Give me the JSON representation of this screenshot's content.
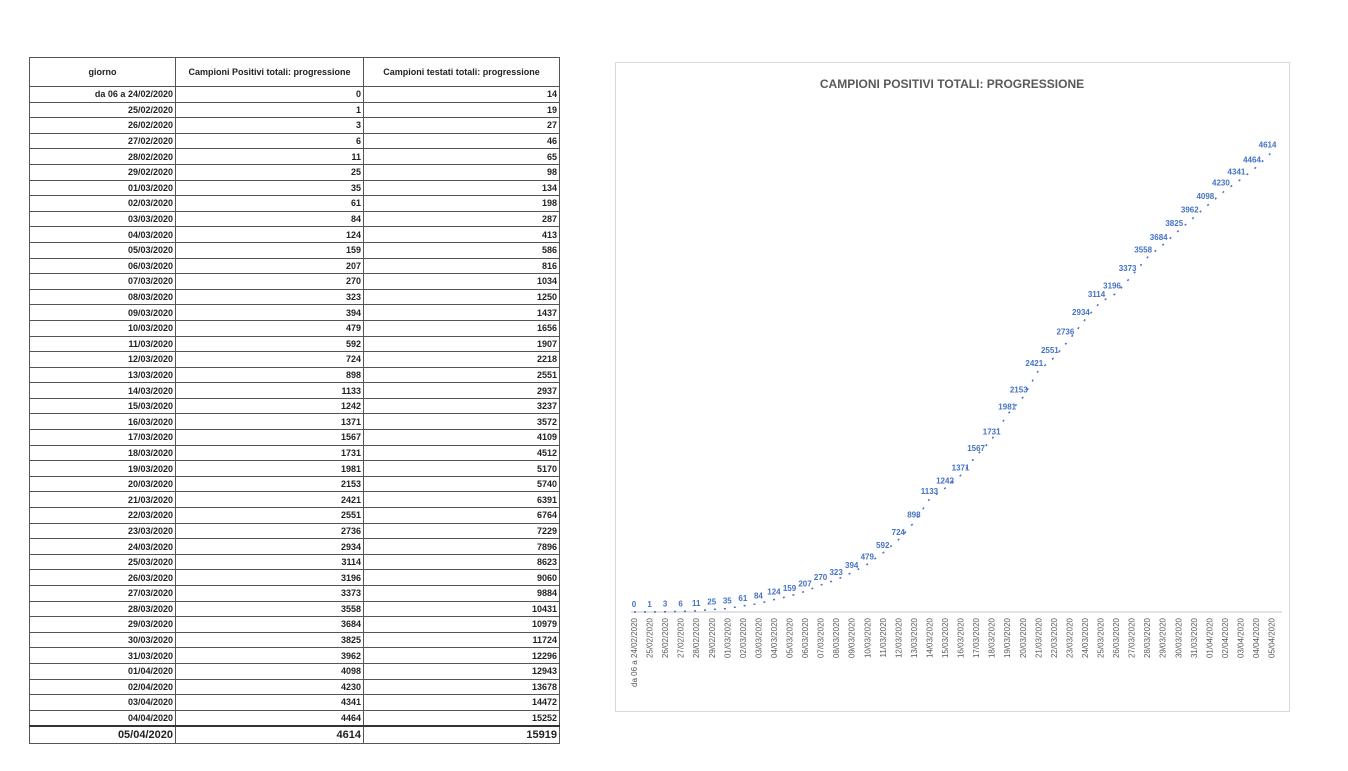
{
  "table": {
    "headers": [
      "giorno",
      "Campioni Positivi totali: progressione",
      "Campioni testati totali: progressione"
    ],
    "rows": [
      [
        "da 06 a 24/02/2020",
        0,
        14
      ],
      [
        "25/02/2020",
        1,
        19
      ],
      [
        "26/02/2020",
        3,
        27
      ],
      [
        "27/02/2020",
        6,
        46
      ],
      [
        "28/02/2020",
        11,
        65
      ],
      [
        "29/02/2020",
        25,
        98
      ],
      [
        "01/03/2020",
        35,
        134
      ],
      [
        "02/03/2020",
        61,
        198
      ],
      [
        "03/03/2020",
        84,
        287
      ],
      [
        "04/03/2020",
        124,
        413
      ],
      [
        "05/03/2020",
        159,
        586
      ],
      [
        "06/03/2020",
        207,
        816
      ],
      [
        "07/03/2020",
        270,
        1034
      ],
      [
        "08/03/2020",
        323,
        1250
      ],
      [
        "09/03/2020",
        394,
        1437
      ],
      [
        "10/03/2020",
        479,
        1656
      ],
      [
        "11/03/2020",
        592,
        1907
      ],
      [
        "12/03/2020",
        724,
        2218
      ],
      [
        "13/03/2020",
        898,
        2551
      ],
      [
        "14/03/2020",
        1133,
        2937
      ],
      [
        "15/03/2020",
        1242,
        3237
      ],
      [
        "16/03/2020",
        1371,
        3572
      ],
      [
        "17/03/2020",
        1567,
        4109
      ],
      [
        "18/03/2020",
        1731,
        4512
      ],
      [
        "19/03/2020",
        1981,
        5170
      ],
      [
        "20/03/2020",
        2153,
        5740
      ],
      [
        "21/03/2020",
        2421,
        6391
      ],
      [
        "22/03/2020",
        2551,
        6764
      ],
      [
        "23/03/2020",
        2736,
        7229
      ],
      [
        "24/03/2020",
        2934,
        7896
      ],
      [
        "25/03/2020",
        3114,
        8623
      ],
      [
        "26/03/2020",
        3196,
        9060
      ],
      [
        "27/03/2020",
        3373,
        9884
      ],
      [
        "28/03/2020",
        3558,
        10431
      ],
      [
        "29/03/2020",
        3684,
        10979
      ],
      [
        "30/03/2020",
        3825,
        11724
      ],
      [
        "31/03/2020",
        3962,
        12296
      ],
      [
        "01/04/2020",
        4098,
        12943
      ],
      [
        "02/04/2020",
        4230,
        13678
      ],
      [
        "03/04/2020",
        4341,
        14472
      ],
      [
        "04/04/2020",
        4464,
        15252
      ],
      [
        "05/04/2020",
        4614,
        15919
      ]
    ]
  },
  "chart_data": {
    "type": "line",
    "title": "CAMPIONI POSITIVI TOTALI: PROGRESSIONE",
    "categories": [
      "da 06 a 24/02/2020",
      "25/02/2020",
      "26/02/2020",
      "27/02/2020",
      "28/02/2020",
      "29/02/2020",
      "01/03/2020",
      "02/03/2020",
      "03/03/2020",
      "04/03/2020",
      "05/03/2020",
      "06/03/2020",
      "07/03/2020",
      "08/03/2020",
      "09/03/2020",
      "10/03/2020",
      "11/03/2020",
      "12/03/2020",
      "13/03/2020",
      "14/03/2020",
      "15/03/2020",
      "16/03/2020",
      "17/03/2020",
      "18/03/2020",
      "19/03/2020",
      "20/03/2020",
      "21/03/2020",
      "22/03/2020",
      "23/03/2020",
      "24/03/2020",
      "25/03/2020",
      "26/03/2020",
      "27/03/2020",
      "28/03/2020",
      "29/03/2020",
      "30/03/2020",
      "31/03/2020",
      "01/04/2020",
      "02/04/2020",
      "03/04/2020",
      "04/04/2020",
      "05/04/2020"
    ],
    "values": [
      0,
      1,
      3,
      6,
      11,
      25,
      35,
      61,
      84,
      124,
      159,
      207,
      270,
      323,
      394,
      479,
      592,
      724,
      898,
      1133,
      1242,
      1371,
      1567,
      1731,
      1981,
      2153,
      2421,
      2551,
      2736,
      2934,
      3114,
      3196,
      3373,
      3558,
      3684,
      3825,
      3962,
      4098,
      4230,
      4341,
      4464,
      4614
    ],
    "ylim": [
      0,
      5000
    ],
    "grid": false,
    "data_labels": true,
    "colors": {
      "series": "#4472c4",
      "axis": "#d9d9d9",
      "title": "#595959"
    }
  }
}
